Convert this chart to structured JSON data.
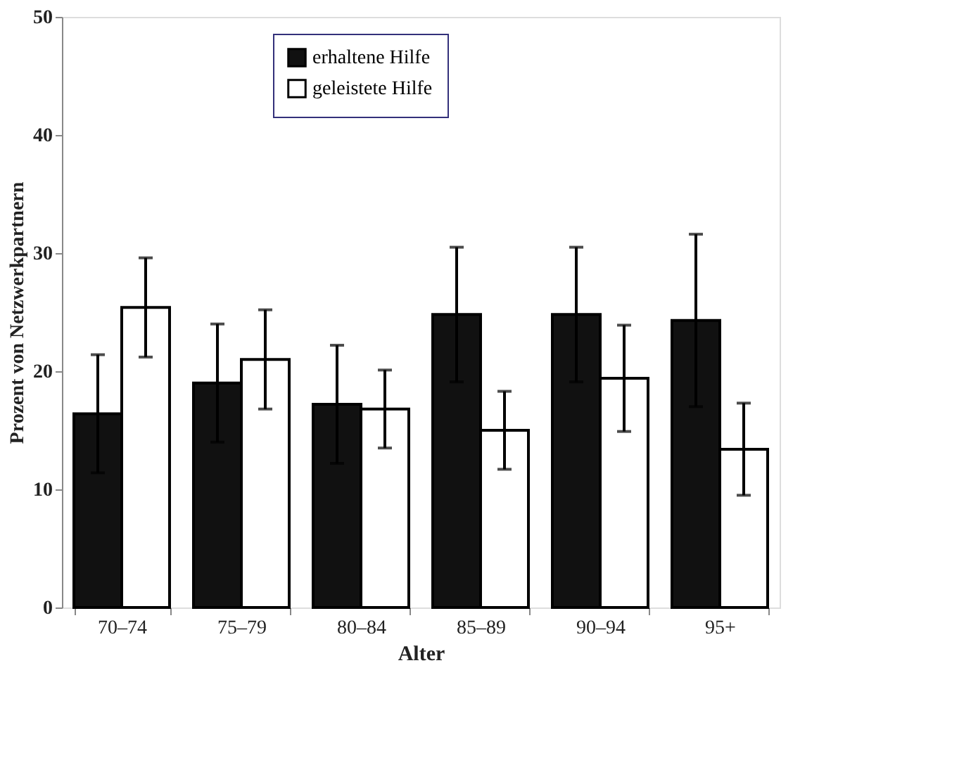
{
  "chart_data": {
    "type": "bar",
    "xlabel": "Alter",
    "ylabel": "Prozent von Netzwerkpartnern",
    "categories": [
      "70–74",
      "75–79",
      "80–84",
      "85–89",
      "90–94",
      "95+"
    ],
    "series": [
      {
        "name": "erhaltene Hilfe",
        "color": "#111111",
        "values": [
          16.4,
          19,
          17.2,
          24.8,
          24.8,
          24.3
        ],
        "errors": [
          5,
          5,
          5,
          5.7,
          5.7,
          7.3
        ]
      },
      {
        "name": "geleistete Hilfe",
        "color": "#ffffff",
        "values": [
          25.4,
          21,
          16.8,
          15,
          19.4,
          13.4
        ],
        "errors": [
          4.2,
          4.2,
          3.3,
          3.3,
          4.5,
          3.9
        ]
      }
    ],
    "ylim": [
      0,
      50
    ],
    "yticks": [
      0,
      10,
      20,
      30,
      40,
      50
    ],
    "grid": false,
    "legend": "top"
  }
}
